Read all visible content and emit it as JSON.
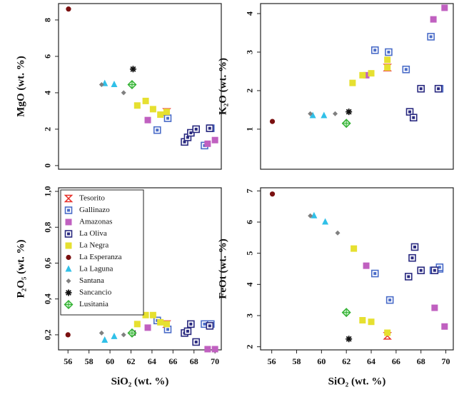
{
  "chart_data": [
    {
      "type": "scatter",
      "ylabel": "MgO (wt. %)",
      "xlim": [
        55.1,
        70.6
      ],
      "ylim": [
        -0.2,
        8.9
      ],
      "yticks": [
        0,
        2,
        4,
        6,
        8
      ],
      "series": [
        {
          "name": "Tesorito",
          "color": "#e8302a",
          "marker": "hourglass",
          "x": [
            65.4
          ],
          "y": [
            2.95
          ]
        },
        {
          "name": "Gallinazo",
          "color": "#4a6cc8",
          "marker": "square-dot",
          "x": [
            64.5,
            65.5,
            69.0,
            69.6
          ],
          "y": [
            1.95,
            2.6,
            1.1,
            2.05
          ]
        },
        {
          "name": "Amazonas",
          "color": "#c060c0",
          "marker": "square",
          "x": [
            63.6,
            69.3,
            70.0
          ],
          "y": [
            2.5,
            1.2,
            1.4
          ]
        },
        {
          "name": "La Oliva",
          "color": "#2a2a80",
          "marker": "square-dot",
          "x": [
            67.1,
            67.4,
            67.7,
            68.2,
            69.5
          ],
          "y": [
            1.3,
            1.55,
            1.8,
            2.0,
            2.05
          ]
        },
        {
          "name": "La Negra",
          "color": "#e6e030",
          "marker": "square",
          "x": [
            62.6,
            63.4,
            64.1,
            64.8,
            65.4
          ],
          "y": [
            3.3,
            3.55,
            3.1,
            2.8,
            2.95
          ]
        },
        {
          "name": "La Esperanza",
          "color": "#7a1010",
          "marker": "circle",
          "x": [
            56.05
          ],
          "y": [
            8.6
          ]
        },
        {
          "name": "La Laguna",
          "color": "#30c0e8",
          "marker": "triangle",
          "x": [
            59.5,
            60.4
          ],
          "y": [
            4.5,
            4.45
          ]
        },
        {
          "name": "Santana",
          "color": "#808080",
          "marker": "diamond",
          "x": [
            59.2,
            61.3
          ],
          "y": [
            4.45,
            4.0
          ]
        },
        {
          "name": "Sancancio",
          "color": "#111111",
          "marker": "asterisk",
          "x": [
            62.2
          ],
          "y": [
            5.3
          ]
        },
        {
          "name": "Lusitania",
          "color": "#30b030",
          "marker": "diamond-cross",
          "x": [
            62.1
          ],
          "y": [
            4.45
          ]
        }
      ]
    },
    {
      "type": "scatter",
      "ylabel": "K₂O (wt. %)",
      "xlim": [
        55.1,
        70.6
      ],
      "ylim": [
        -0.04,
        4.26
      ],
      "yticks": [
        1,
        2,
        3,
        4
      ],
      "series": [
        {
          "name": "Tesorito",
          "color": "#e8302a",
          "marker": "hourglass",
          "x": [
            65.3
          ],
          "y": [
            2.6
          ]
        },
        {
          "name": "Gallinazo",
          "color": "#4a6cc8",
          "marker": "square-dot",
          "x": [
            64.3,
            65.4,
            66.8,
            68.8,
            69.5
          ],
          "y": [
            3.05,
            3.0,
            2.55,
            3.4,
            2.05
          ]
        },
        {
          "name": "Amazonas",
          "color": "#c060c0",
          "marker": "square",
          "x": [
            63.6,
            69.0,
            69.9
          ],
          "y": [
            2.4,
            3.85,
            4.15
          ]
        },
        {
          "name": "La Oliva",
          "color": "#2a2a80",
          "marker": "square-dot",
          "x": [
            67.1,
            67.4,
            68.0,
            69.4
          ],
          "y": [
            1.45,
            1.3,
            2.05,
            2.05
          ]
        },
        {
          "name": "La Negra",
          "color": "#e6e030",
          "marker": "square",
          "x": [
            62.5,
            63.3,
            64.0,
            65.3,
            65.3
          ],
          "y": [
            2.2,
            2.4,
            2.45,
            2.8,
            2.6
          ]
        },
        {
          "name": "La Esperanza",
          "color": "#7a1010",
          "marker": "circle",
          "x": [
            56.05
          ],
          "y": [
            1.2
          ]
        },
        {
          "name": "La Laguna",
          "color": "#30c0e8",
          "marker": "triangle",
          "x": [
            59.3,
            60.2
          ],
          "y": [
            1.35,
            1.35
          ]
        },
        {
          "name": "Santana",
          "color": "#808080",
          "marker": "diamond",
          "x": [
            59.1,
            61.1
          ],
          "y": [
            1.4,
            1.4
          ]
        },
        {
          "name": "Sancancio",
          "color": "#111111",
          "marker": "asterisk",
          "x": [
            62.2
          ],
          "y": [
            1.45
          ]
        },
        {
          "name": "Lusitania",
          "color": "#30b030",
          "marker": "diamond-cross",
          "x": [
            62.0
          ],
          "y": [
            1.15
          ]
        }
      ]
    },
    {
      "type": "scatter",
      "ylabel": "P₂O₅ (wt. %)",
      "xlabel": "SiO₂ (wt. %)",
      "xlim": [
        55.1,
        70.6
      ],
      "ylim": [
        0.116,
        1.02
      ],
      "xticks": [
        56,
        58,
        60,
        62,
        64,
        66,
        68,
        70
      ],
      "yticks": [
        {
          "value": 0.2,
          "label": "0,2"
        },
        {
          "value": 0.4,
          "label": "0,4"
        },
        {
          "value": 0.6,
          "label": "0,6"
        },
        {
          "value": 0.8,
          "label": "0,8"
        },
        {
          "value": 1.0,
          "label": "1,0"
        }
      ],
      "legend": "upper left",
      "series": [
        {
          "name": "Tesorito",
          "color": "#e8302a",
          "marker": "hourglass",
          "x": [
            65.4
          ],
          "y": [
            0.26
          ]
        },
        {
          "name": "Gallinazo",
          "color": "#4a6cc8",
          "marker": "square-dot",
          "x": [
            64.5,
            65.5,
            69.0,
            69.6
          ],
          "y": [
            0.28,
            0.23,
            0.26,
            0.26
          ]
        },
        {
          "name": "Amazonas",
          "color": "#c060c0",
          "marker": "square",
          "x": [
            63.6,
            69.3,
            70.0
          ],
          "y": [
            0.24,
            0.12,
            0.12
          ]
        },
        {
          "name": "La Oliva",
          "color": "#2a2a80",
          "marker": "square-dot",
          "x": [
            67.1,
            67.4,
            67.7,
            68.2,
            69.5
          ],
          "y": [
            0.21,
            0.22,
            0.26,
            0.16,
            0.25
          ]
        },
        {
          "name": "La Negra",
          "color": "#e6e030",
          "marker": "square",
          "x": [
            62.6,
            63.4,
            64.1,
            64.8,
            65.4
          ],
          "y": [
            0.26,
            0.31,
            0.31,
            0.27,
            0.26
          ]
        },
        {
          "name": "La Esperanza",
          "color": "#7a1010",
          "marker": "circle",
          "x": [
            56.0
          ],
          "y": [
            0.2
          ]
        },
        {
          "name": "La Laguna",
          "color": "#30c0e8",
          "marker": "triangle",
          "x": [
            59.5,
            60.4
          ],
          "y": [
            0.17,
            0.19
          ]
        },
        {
          "name": "Santana",
          "color": "#808080",
          "marker": "diamond",
          "x": [
            59.2,
            61.3
          ],
          "y": [
            0.21,
            0.2
          ]
        },
        {
          "name": "Sancancio",
          "color": "#111111",
          "marker": "asterisk",
          "x": [
            62.2
          ],
          "y": [
            0.21
          ]
        },
        {
          "name": "Lusitania",
          "color": "#30b030",
          "marker": "diamond-cross",
          "x": [
            62.1
          ],
          "y": [
            0.21
          ]
        }
      ]
    },
    {
      "type": "scatter",
      "ylabel": "FeOt (wt. %)",
      "xlabel": "SiO₂ (wt. %)",
      "xlim": [
        55.1,
        70.6
      ],
      "ylim": [
        1.9,
        7.1
      ],
      "xticks": [
        56,
        58,
        60,
        62,
        64,
        66,
        68,
        70
      ],
      "yticks": [
        2,
        3,
        4,
        5,
        6,
        7
      ],
      "series": [
        {
          "name": "Tesorito",
          "color": "#e8302a",
          "marker": "hourglass",
          "x": [
            65.3
          ],
          "y": [
            2.35
          ]
        },
        {
          "name": "Gallinazo",
          "color": "#4a6cc8",
          "marker": "square-dot",
          "x": [
            64.3,
            65.5,
            69.0,
            69.5,
            69.5
          ],
          "y": [
            4.35,
            3.5,
            4.45,
            4.5,
            4.55
          ]
        },
        {
          "name": "Amazonas",
          "color": "#c060c0",
          "marker": "square",
          "x": [
            63.6,
            69.1,
            69.9
          ],
          "y": [
            4.6,
            3.25,
            2.65
          ]
        },
        {
          "name": "La Oliva",
          "color": "#2a2a80",
          "marker": "square-dot",
          "x": [
            67.0,
            67.3,
            67.5,
            68.0,
            69.1
          ],
          "y": [
            4.25,
            4.85,
            5.2,
            4.45,
            4.45
          ]
        },
        {
          "name": "La Negra",
          "color": "#e6e030",
          "marker": "square",
          "x": [
            62.6,
            63.3,
            64.0,
            65.3
          ],
          "y": [
            5.15,
            2.85,
            2.8,
            2.45
          ]
        },
        {
          "name": "La Esperanza",
          "color": "#7a1010",
          "marker": "circle",
          "x": [
            56.05
          ],
          "y": [
            6.9
          ]
        },
        {
          "name": "La Laguna",
          "color": "#30c0e8",
          "marker": "triangle",
          "x": [
            59.4,
            60.3
          ],
          "y": [
            6.2,
            6.0
          ]
        },
        {
          "name": "Santana",
          "color": "#808080",
          "marker": "diamond",
          "x": [
            59.1,
            61.3
          ],
          "y": [
            6.2,
            5.65
          ]
        },
        {
          "name": "Sancancio",
          "color": "#111111",
          "marker": "asterisk",
          "x": [
            62.2
          ],
          "y": [
            2.25
          ]
        },
        {
          "name": "Lusitania",
          "color": "#30b030",
          "marker": "diamond-cross",
          "x": [
            62.0
          ],
          "y": [
            3.1
          ]
        }
      ]
    }
  ]
}
